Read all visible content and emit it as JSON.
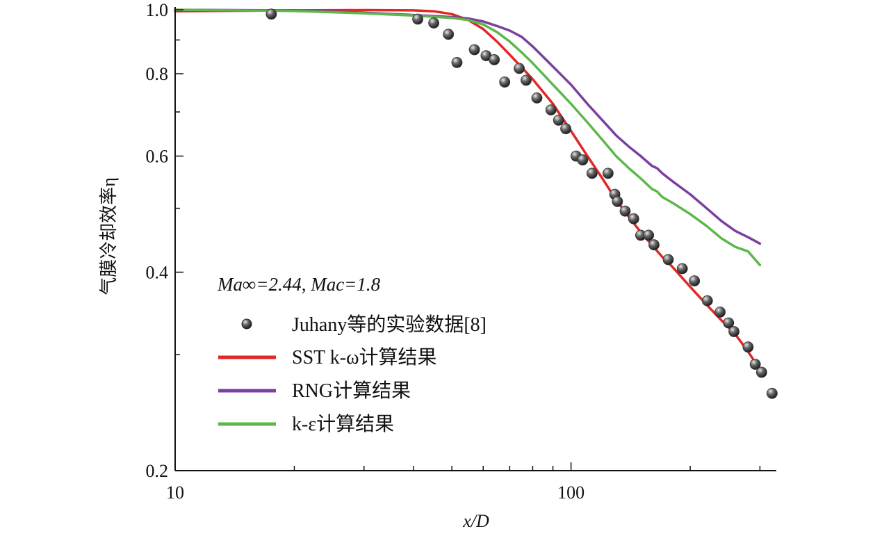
{
  "chart_data": {
    "type": "line",
    "xscale": "log",
    "yscale": "log",
    "xlim": [
      10,
      330
    ],
    "ylim": [
      0.2,
      1.0
    ],
    "x_ticks": [
      10,
      100
    ],
    "x_tick_labels": [
      "10",
      "100"
    ],
    "y_ticks": [
      0.2,
      0.4,
      0.6,
      0.8,
      1.0
    ],
    "y_tick_labels": [
      "0.2",
      "0.4",
      "0.6",
      "0.8",
      "1.0"
    ],
    "xlabel": "x/D",
    "ylabel": "气膜冷却效率η",
    "annotation": "Ma∞=2.44, Mac=1.8",
    "grid": false,
    "legend_position": "lower-left",
    "series": [
      {
        "name": "Juhany等的实验数据[8]",
        "kind": "scatter",
        "color": "#555555",
        "x": [
          17.5,
          41,
          45,
          49,
          51.5,
          57,
          61,
          64,
          68,
          74,
          77,
          82,
          89,
          93,
          97,
          103,
          107,
          113,
          124,
          129,
          131,
          137,
          144,
          150,
          157,
          162,
          176,
          191,
          205,
          221,
          238,
          250,
          258,
          280,
          292,
          303,
          322
        ],
        "y": [
          0.985,
          0.968,
          0.955,
          0.918,
          0.832,
          0.87,
          0.852,
          0.84,
          0.777,
          0.815,
          0.782,
          0.735,
          0.705,
          0.68,
          0.66,
          0.6,
          0.592,
          0.565,
          0.565,
          0.525,
          0.512,
          0.495,
          0.482,
          0.455,
          0.455,
          0.44,
          0.418,
          0.405,
          0.388,
          0.362,
          0.348,
          0.335,
          0.325,
          0.308,
          0.29,
          0.282,
          0.262
        ]
      },
      {
        "name": "SST k-ω计算结果",
        "kind": "line",
        "color": "#e32626",
        "x": [
          10,
          20,
          30,
          40,
          45,
          50,
          55,
          60,
          65,
          70,
          75,
          80,
          90,
          100,
          110,
          120,
          130,
          140,
          150,
          160,
          170,
          180,
          200,
          220,
          240,
          260,
          280,
          300
        ],
        "y": [
          0.995,
          0.998,
          0.999,
          0.998,
          0.995,
          0.985,
          0.965,
          0.935,
          0.895,
          0.855,
          0.818,
          0.785,
          0.72,
          0.655,
          0.6,
          0.555,
          0.515,
          0.485,
          0.46,
          0.44,
          0.422,
          0.408,
          0.38,
          0.357,
          0.338,
          0.322,
          0.303,
          0.285
        ]
      },
      {
        "name": "RNG计算结果",
        "kind": "line",
        "color": "#7b3fa0",
        "x": [
          10,
          20,
          30,
          40,
          50,
          55,
          60,
          65,
          70,
          75,
          80,
          90,
          100,
          110,
          120,
          130,
          140,
          150,
          160,
          165,
          170,
          180,
          200,
          220,
          240,
          260,
          280,
          300
        ],
        "y": [
          1.0,
          0.998,
          0.99,
          0.982,
          0.975,
          0.97,
          0.96,
          0.945,
          0.93,
          0.91,
          0.88,
          0.82,
          0.77,
          0.72,
          0.68,
          0.645,
          0.62,
          0.6,
          0.58,
          0.575,
          0.565,
          0.55,
          0.525,
          0.5,
          0.478,
          0.462,
          0.452,
          0.442
        ]
      },
      {
        "name": "k-ε计算结果",
        "kind": "line",
        "color": "#5cb84a",
        "x": [
          10,
          20,
          30,
          40,
          50,
          55,
          60,
          65,
          70,
          75,
          80,
          90,
          100,
          110,
          120,
          130,
          140,
          150,
          160,
          165,
          170,
          180,
          200,
          220,
          240,
          260,
          280,
          300
        ],
        "y": [
          1.0,
          0.996,
          0.988,
          0.98,
          0.972,
          0.965,
          0.95,
          0.925,
          0.895,
          0.862,
          0.83,
          0.77,
          0.72,
          0.675,
          0.635,
          0.6,
          0.575,
          0.555,
          0.535,
          0.53,
          0.52,
          0.51,
          0.49,
          0.47,
          0.45,
          0.437,
          0.43,
          0.41
        ]
      }
    ]
  }
}
